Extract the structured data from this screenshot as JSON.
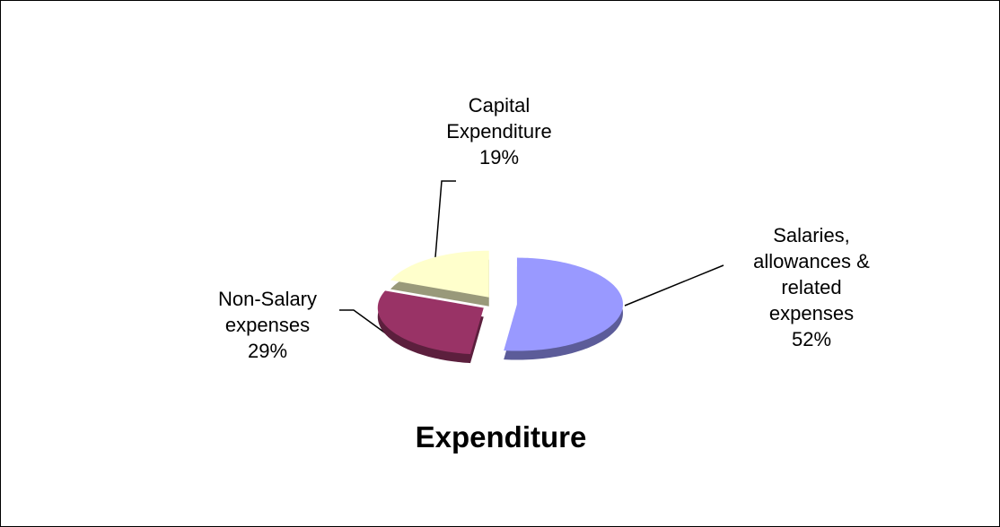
{
  "chart_data": {
    "type": "pie",
    "title": "Expenditure",
    "categories": [
      "Salaries, allowances & related expenses",
      "Non-Salary expenses",
      "Capital Expenditure"
    ],
    "values": [
      52,
      29,
      19
    ],
    "value_labels": [
      "52%",
      "29%",
      "19%"
    ],
    "colors": [
      "#9999ff",
      "#993366",
      "#ffffcc"
    ]
  }
}
